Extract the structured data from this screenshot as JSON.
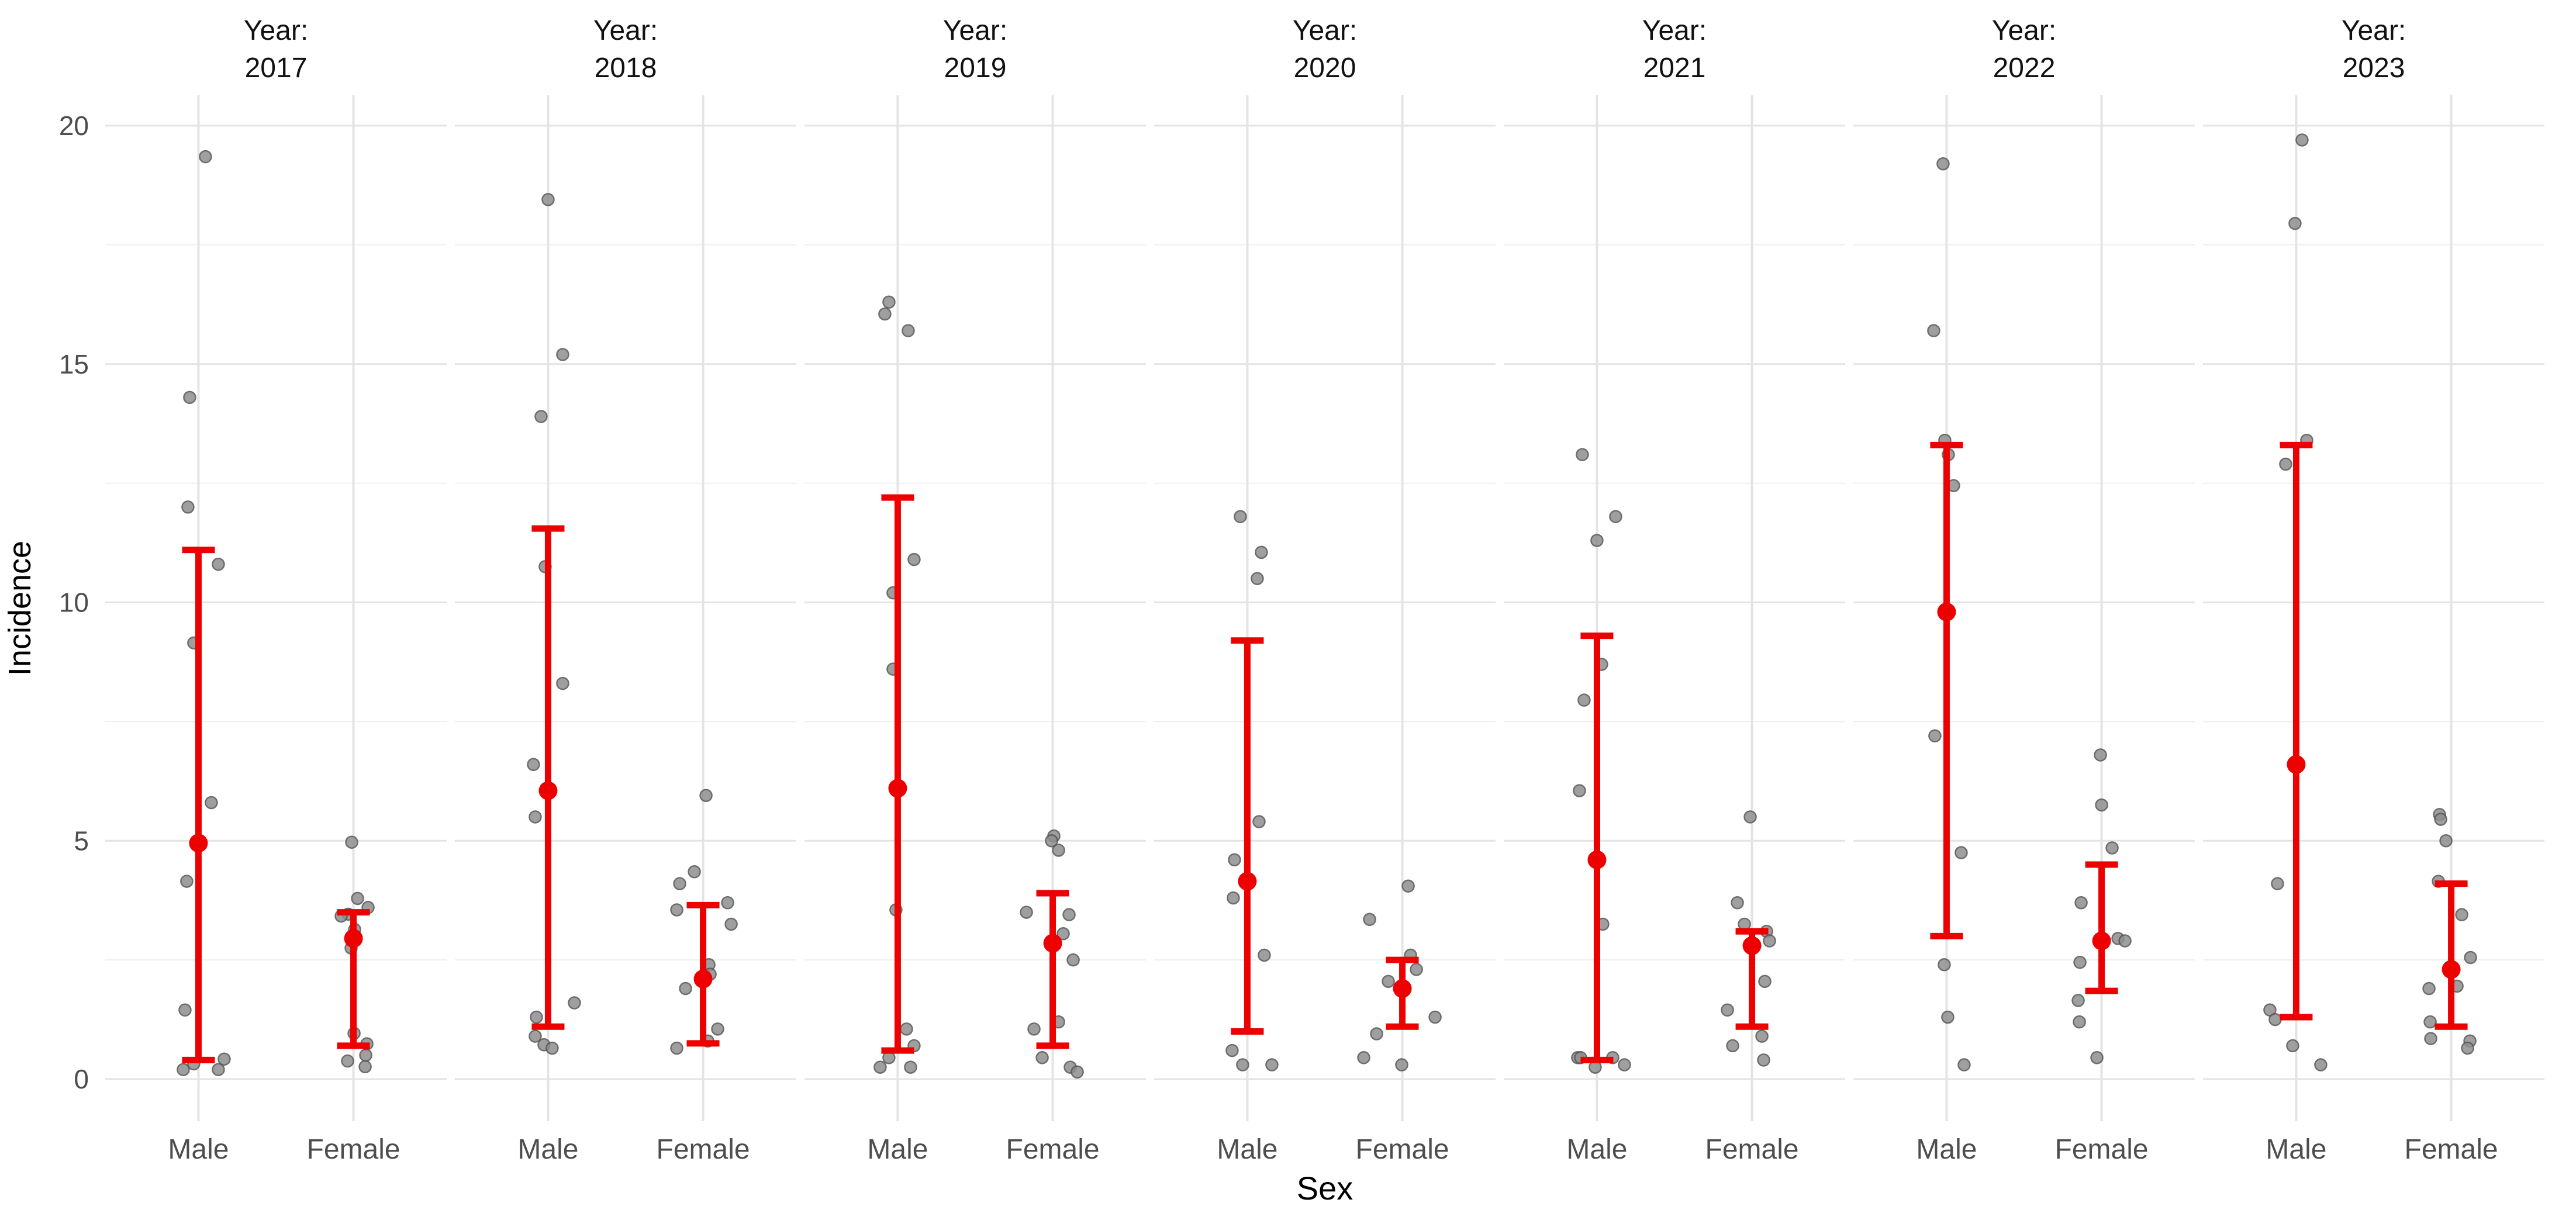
{
  "chart_data": {
    "type": "pointrange",
    "title": "",
    "xlabel": "Sex",
    "ylabel": "Incidence",
    "facet_prefix": "Year:",
    "categories": [
      "Male",
      "Female"
    ],
    "yticks": [
      0,
      5,
      10,
      15,
      20
    ],
    "minor_gridlines": [
      2.5,
      7.5,
      12.5,
      17.5
    ],
    "ylim": [
      -0.9,
      20.6
    ],
    "grid": "on",
    "legend_position": "none",
    "colors": {
      "pointrange": "#EC0000",
      "jitter_fill": "#8F8F8F",
      "jitter_stroke": "#545454",
      "gridline_major": "#E4E4E4",
      "gridline_minor": "#EFEFEF",
      "tick_label": "#4D4D4D",
      "axis_title": "#000000",
      "strip_label": "#111111",
      "background": "#FFFFFF"
    },
    "facets": [
      {
        "year": "2017",
        "series": [
          {
            "category": "Male",
            "mean": 4.95,
            "lower": 0.4,
            "upper": 11.1,
            "points": [
              [
                12,
                19.35
              ],
              [
                -15,
                14.3
              ],
              [
                -18,
                12.0
              ],
              [
                34,
                10.8
              ],
              [
                -8,
                9.15
              ],
              [
                22,
                5.8
              ],
              [
                -20,
                4.15
              ],
              [
                -23,
                1.45
              ],
              [
                44,
                0.42
              ],
              [
                -8,
                0.32
              ],
              [
                -26,
                0.2
              ],
              [
                34,
                0.2
              ]
            ]
          },
          {
            "category": "Female",
            "mean": 2.95,
            "lower": 0.7,
            "upper": 3.5,
            "points": [
              [
                -3,
                4.97
              ],
              [
                7,
                3.79
              ],
              [
                25,
                3.6
              ],
              [
                -9,
                3.46
              ],
              [
                -21,
                3.42
              ],
              [
                2,
                3.14
              ],
              [
                -4,
                2.75
              ],
              [
                1,
                0.96
              ],
              [
                23,
                0.74
              ],
              [
                21,
                0.5
              ],
              [
                -10,
                0.38
              ],
              [
                20,
                0.26
              ]
            ]
          }
        ]
      },
      {
        "year": "2018",
        "series": [
          {
            "category": "Male",
            "mean": 6.05,
            "lower": 1.1,
            "upper": 11.55,
            "points": [
              [
                0,
                18.45
              ],
              [
                25,
                15.2
              ],
              [
                -12,
                13.9
              ],
              [
                -5,
                10.75
              ],
              [
                25,
                8.3
              ],
              [
                -25,
                6.6
              ],
              [
                -22,
                5.5
              ],
              [
                45,
                1.6
              ],
              [
                -20,
                1.3
              ],
              [
                -22,
                0.9
              ],
              [
                -7,
                0.72
              ],
              [
                7,
                0.65
              ]
            ]
          },
          {
            "category": "Female",
            "mean": 2.1,
            "lower": 0.75,
            "upper": 3.65,
            "points": [
              [
                5,
                5.95
              ],
              [
                -15,
                4.35
              ],
              [
                -40,
                4.1
              ],
              [
                42,
                3.7
              ],
              [
                -45,
                3.55
              ],
              [
                48,
                3.25
              ],
              [
                10,
                2.4
              ],
              [
                12,
                2.2
              ],
              [
                -30,
                1.9
              ],
              [
                25,
                1.05
              ],
              [
                8,
                0.8
              ],
              [
                -45,
                0.65
              ]
            ]
          }
        ]
      },
      {
        "year": "2019",
        "series": [
          {
            "category": "Male",
            "mean": 6.1,
            "lower": 0.6,
            "upper": 12.2,
            "points": [
              [
                -15,
                16.3
              ],
              [
                -22,
                16.05
              ],
              [
                18,
                15.7
              ],
              [
                28,
                10.9
              ],
              [
                -8,
                10.2
              ],
              [
                -8,
                8.6
              ],
              [
                -3,
                3.55
              ],
              [
                15,
                1.05
              ],
              [
                28,
                0.7
              ],
              [
                -15,
                0.45
              ],
              [
                -30,
                0.25
              ],
              [
                22,
                0.25
              ]
            ]
          },
          {
            "category": "Female",
            "mean": 2.85,
            "lower": 0.7,
            "upper": 3.9,
            "points": [
              [
                2,
                5.1
              ],
              [
                -2,
                5.0
              ],
              [
                10,
                4.8
              ],
              [
                -45,
                3.5
              ],
              [
                28,
                3.45
              ],
              [
                18,
                3.05
              ],
              [
                35,
                2.5
              ],
              [
                10,
                1.2
              ],
              [
                -32,
                1.05
              ],
              [
                -18,
                0.45
              ],
              [
                30,
                0.25
              ],
              [
                42,
                0.15
              ]
            ]
          }
        ]
      },
      {
        "year": "2020",
        "series": [
          {
            "category": "Male",
            "mean": 4.15,
            "lower": 1.0,
            "upper": 9.2,
            "points": [
              [
                -12,
                11.8
              ],
              [
                24,
                11.05
              ],
              [
                17,
                10.5
              ],
              [
                20,
                5.4
              ],
              [
                -22,
                4.6
              ],
              [
                -24,
                3.8
              ],
              [
                29,
                2.6
              ],
              [
                -26,
                0.6
              ],
              [
                -8,
                0.3
              ],
              [
                42,
                0.3
              ]
            ]
          },
          {
            "category": "Female",
            "mean": 1.9,
            "lower": 1.1,
            "upper": 2.5,
            "points": [
              [
                10,
                4.05
              ],
              [
                -56,
                3.35
              ],
              [
                14,
                2.6
              ],
              [
                24,
                2.3
              ],
              [
                -24,
                2.05
              ],
              [
                56,
                1.3
              ],
              [
                -44,
                0.95
              ],
              [
                -66,
                0.45
              ],
              [
                -1,
                0.3
              ]
            ]
          }
        ]
      },
      {
        "year": "2021",
        "series": [
          {
            "category": "Male",
            "mean": 4.6,
            "lower": 0.4,
            "upper": 9.3,
            "points": [
              [
                -25,
                13.1
              ],
              [
                32,
                11.8
              ],
              [
                0,
                11.3
              ],
              [
                8,
                8.7
              ],
              [
                -22,
                7.95
              ],
              [
                -30,
                6.05
              ],
              [
                10,
                3.25
              ],
              [
                -33,
                0.45
              ],
              [
                -28,
                0.45
              ],
              [
                27,
                0.45
              ],
              [
                -3,
                0.25
              ],
              [
                47,
                0.3
              ]
            ]
          },
          {
            "category": "Female",
            "mean": 2.8,
            "lower": 1.1,
            "upper": 3.1,
            "points": [
              [
                -3,
                5.5
              ],
              [
                -25,
                3.7
              ],
              [
                -13,
                3.25
              ],
              [
                25,
                3.1
              ],
              [
                30,
                2.9
              ],
              [
                22,
                2.05
              ],
              [
                -42,
                1.45
              ],
              [
                17,
                0.9
              ],
              [
                -33,
                0.7
              ],
              [
                20,
                0.4
              ]
            ]
          }
        ]
      },
      {
        "year": "2022",
        "series": [
          {
            "category": "Male",
            "mean": 9.8,
            "lower": 3.0,
            "upper": 13.3,
            "points": [
              [
                -6,
                19.2
              ],
              [
                -22,
                15.7
              ],
              [
                -3,
                13.4
              ],
              [
                3,
                13.1
              ],
              [
                12,
                12.45
              ],
              [
                -20,
                7.2
              ],
              [
                25,
                4.75
              ],
              [
                -4,
                2.4
              ],
              [
                2,
                1.3
              ],
              [
                30,
                0.3
              ]
            ]
          },
          {
            "category": "Female",
            "mean": 2.9,
            "lower": 1.85,
            "upper": 4.5,
            "points": [
              [
                -2,
                6.8
              ],
              [
                0,
                5.75
              ],
              [
                18,
                4.85
              ],
              [
                -35,
                3.7
              ],
              [
                28,
                2.95
              ],
              [
                40,
                2.9
              ],
              [
                -37,
                2.45
              ],
              [
                -40,
                1.65
              ],
              [
                -38,
                1.2
              ],
              [
                -8,
                0.45
              ]
            ]
          }
        ]
      },
      {
        "year": "2023",
        "series": [
          {
            "category": "Male",
            "mean": 6.6,
            "lower": 1.3,
            "upper": 13.3,
            "points": [
              [
                10,
                19.7
              ],
              [
                -2,
                17.95
              ],
              [
                18,
                13.4
              ],
              [
                -18,
                12.9
              ],
              [
                -32,
                4.1
              ],
              [
                -45,
                1.45
              ],
              [
                -36,
                1.25
              ],
              [
                -6,
                0.7
              ],
              [
                42,
                0.3
              ]
            ]
          },
          {
            "category": "Female",
            "mean": 2.3,
            "lower": 1.1,
            "upper": 4.1,
            "points": [
              [
                -20,
                5.55
              ],
              [
                -18,
                5.45
              ],
              [
                -9,
                5.0
              ],
              [
                -22,
                4.15
              ],
              [
                18,
                3.45
              ],
              [
                33,
                2.55
              ],
              [
                10,
                1.95
              ],
              [
                -38,
                1.9
              ],
              [
                -36,
                1.2
              ],
              [
                -35,
                0.85
              ],
              [
                32,
                0.8
              ],
              [
                28,
                0.65
              ]
            ]
          }
        ]
      }
    ]
  }
}
